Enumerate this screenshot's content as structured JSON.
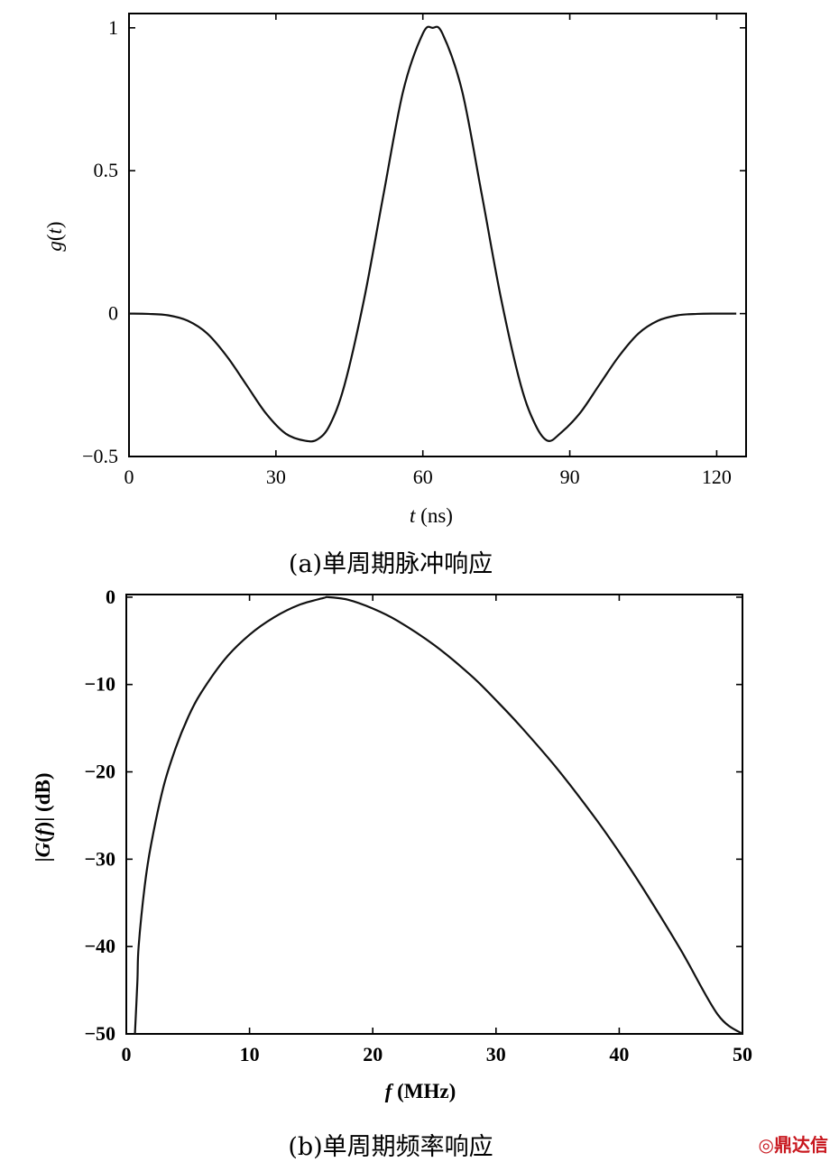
{
  "chart_data": [
    {
      "type": "line",
      "caption": "(a)单周期脉冲响应",
      "xlabel": "t (ns)",
      "ylabel": "g(t)",
      "xlim": [
        0,
        126
      ],
      "ylim": [
        -0.5,
        1.05
      ],
      "xticks": [
        0,
        30,
        60,
        90,
        120
      ],
      "xtick_labels": [
        "0",
        "30",
        "60",
        "90",
        "120"
      ],
      "yticks": [
        -0.5,
        0,
        0.5,
        1
      ],
      "ytick_labels": [
        "−0.5",
        "0",
        "0.5",
        "1"
      ],
      "grid": false,
      "series": [
        {
          "x": [
            0,
            4,
            8,
            12,
            16,
            20,
            24,
            28,
            32,
            36,
            38.5,
            41,
            44,
            48,
            52,
            56,
            60,
            62,
            64,
            68,
            72,
            76,
            80,
            83,
            85.5,
            88,
            92,
            96,
            100,
            104,
            108,
            112,
            116,
            120,
            124
          ],
          "y": [
            0.0,
            -0.001,
            -0.006,
            -0.025,
            -0.07,
            -0.15,
            -0.25,
            -0.35,
            -0.42,
            -0.445,
            -0.44,
            -0.39,
            -0.25,
            0.05,
            0.42,
            0.78,
            0.98,
            1.0,
            0.98,
            0.78,
            0.42,
            0.05,
            -0.25,
            -0.39,
            -0.445,
            -0.42,
            -0.35,
            -0.25,
            -0.15,
            -0.07,
            -0.025,
            -0.006,
            -0.001,
            0.0,
            0.0
          ]
        }
      ]
    },
    {
      "type": "line",
      "caption": "(b)单周期频率响应",
      "xlabel": "f (MHz)",
      "ylabel": "|G(f)| (dB)",
      "xlim": [
        0,
        50
      ],
      "ylim": [
        -50,
        0.3
      ],
      "xticks": [
        0,
        10,
        20,
        30,
        40,
        50
      ],
      "xtick_labels": [
        "0",
        "10",
        "20",
        "30",
        "40",
        "50"
      ],
      "yticks": [
        0,
        -10,
        -20,
        -30,
        -40,
        -50
      ],
      "ytick_labels": [
        "0",
        "−10",
        "−20",
        "−30",
        "−40",
        "−50"
      ],
      "grid": false,
      "series": [
        {
          "x": [
            0.7,
            0.9,
            1,
            1.5,
            2,
            3,
            4,
            5,
            6,
            8,
            10,
            12,
            14,
            16,
            16.4,
            18,
            20,
            22,
            25,
            28,
            30,
            32,
            35,
            38,
            40,
            42,
            45,
            48,
            50
          ],
          "y": [
            -50,
            -44,
            -40,
            -33,
            -28.4,
            -21.8,
            -17.3,
            -13.8,
            -11.1,
            -7.1,
            -4.3,
            -2.3,
            -0.9,
            -0.1,
            0.0,
            -0.3,
            -1.3,
            -2.7,
            -5.5,
            -9.0,
            -11.8,
            -14.8,
            -19.7,
            -25.2,
            -29.2,
            -33.5,
            -40.4,
            -47.8,
            -52.9
          ]
        }
      ]
    }
  ],
  "watermark": "鼎达信"
}
